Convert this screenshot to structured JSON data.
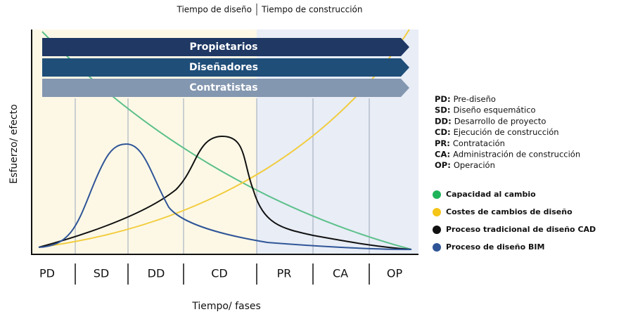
{
  "header": {
    "design_time": "Tiempo de diseño",
    "construction_time": "Tiempo de construcción"
  },
  "banners": [
    "Propietarios",
    "Diseñadores",
    "Contratistas"
  ],
  "axes": {
    "y_label": "Esfuerzo/ efecto",
    "x_label": "Tiempo/ fases"
  },
  "phases": [
    "PD",
    "SD",
    "DD",
    "CD",
    "PR",
    "CA",
    "OP"
  ],
  "abbreviations": [
    {
      "abbr": "PD:",
      "text": "Pre-diseño"
    },
    {
      "abbr": "SD:",
      "text": "Diseño esquemático"
    },
    {
      "abbr": "DD:",
      "text": "Desarrollo de proyecto"
    },
    {
      "abbr": "CD:",
      "text": "Ejecución de construcción"
    },
    {
      "abbr": "PR:",
      "text": "Contratación"
    },
    {
      "abbr": "CA:",
      "text": "Administración de construcción"
    },
    {
      "abbr": "OP:",
      "text": "Operación"
    }
  ],
  "legend": [
    "Capacidad al cambio",
    "Costes de cambios de diseño",
    "Proceso tradicional de diseño CAD",
    "Proceso de diseño BIM"
  ]
}
